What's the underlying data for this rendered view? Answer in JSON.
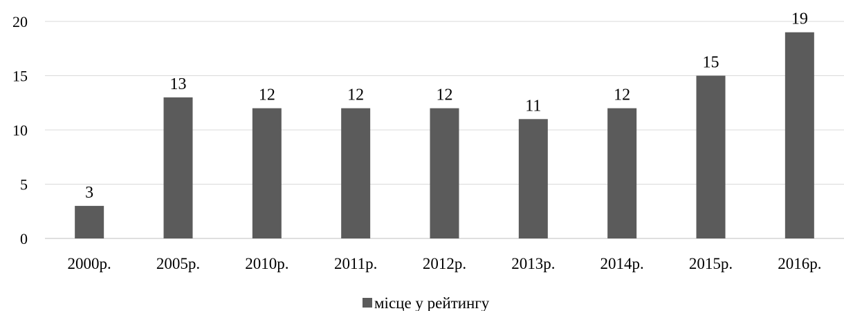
{
  "chart_data": {
    "type": "bar",
    "categories": [
      "2000р.",
      "2005р.",
      "2010р.",
      "2011р.",
      "2012р.",
      "2013р.",
      "2014р.",
      "2015р.",
      "2016р."
    ],
    "series": [
      {
        "name": "місце у рейтингу",
        "values": [
          3,
          13,
          12,
          12,
          12,
          11,
          12,
          15,
          19
        ]
      }
    ],
    "data_labels": [
      "3",
      "13",
      "12",
      "12",
      "12",
      "11",
      "12",
      "15",
      "19"
    ],
    "y_ticks": [
      "0",
      "5",
      "10",
      "15",
      "20"
    ],
    "ylim": [
      0,
      20
    ],
    "grid": true,
    "legend_position": "bottom",
    "title": "",
    "xlabel": "",
    "ylabel": "",
    "colors": {
      "bar": "#5b5b5b",
      "grid": "#d9d9d9",
      "axis": "#bfbfbf",
      "text": "#000000"
    }
  }
}
